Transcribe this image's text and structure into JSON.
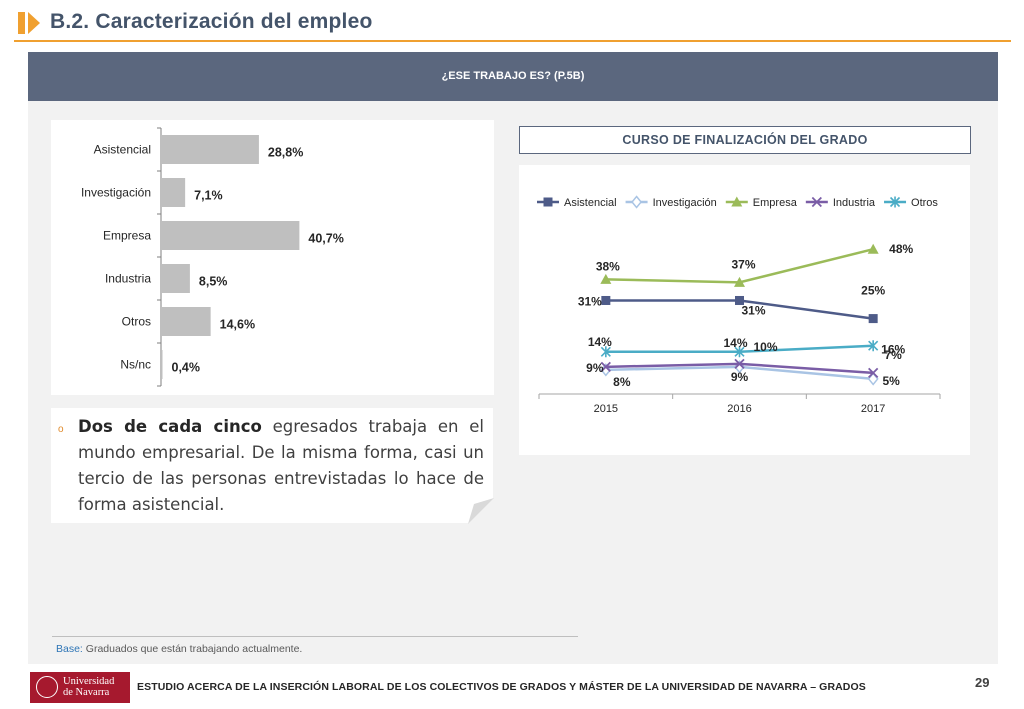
{
  "header": {
    "title": "B.2. Caracterización del empleo"
  },
  "question": {
    "text": "¿ESE TRABAJO ES? (P.5B)"
  },
  "line_chart_title": "CURSO DE FINALIZACIÓN DEL GRADO",
  "callout": {
    "bold": "Dos de cada cinco",
    "text": " egresados trabaja en el mundo empresarial. De la misma forma, casi un tercio de las personas entrevistadas lo hace de forma asistencial."
  },
  "base": {
    "label": "Base:",
    "text": " Graduados que están trabajando actualmente."
  },
  "footer": {
    "logo_line1": "Universidad",
    "logo_line2": "de Navarra",
    "text": "ESTUDIO ACERCA DE LA INSERCIÓN LABORAL DE LOS COLECTIVOS DE GRADOS Y MÁSTER DE LA UNIVERSIDAD DE NAVARRA – GRADOS",
    "page_number": "29"
  },
  "colors": {
    "accent": "#f0a030",
    "bar": "#bfbfbf",
    "header_bar": "#5b677e"
  },
  "chart_data": [
    {
      "type": "bar",
      "orientation": "horizontal",
      "categories": [
        "Asistencial",
        "Investigación",
        "Empresa",
        "Industria",
        "Otros",
        "Ns/nc"
      ],
      "values": [
        28.8,
        7.1,
        40.7,
        8.5,
        14.6,
        0.4
      ],
      "labels": [
        "28,8%",
        "7,1%",
        "40,7%",
        "8,5%",
        "14,6%",
        "0,4%"
      ],
      "xlim": [
        0,
        50
      ],
      "color": "#bfbfbf"
    },
    {
      "type": "line",
      "title": "CURSO DE FINALIZACIÓN DEL GRADO",
      "x": [
        "2015",
        "2016",
        "2017"
      ],
      "ylim": [
        0,
        60
      ],
      "legend_position": "top",
      "series": [
        {
          "name": "Asistencial",
          "values": [
            31,
            31,
            25
          ],
          "labels": [
            "31%",
            "31%",
            "25%"
          ],
          "color": "#4e5b88",
          "marker": "square"
        },
        {
          "name": "Investigación",
          "values": [
            8,
            9,
            5
          ],
          "labels": [
            "8%",
            "9%",
            "5%"
          ],
          "color": "#a9c4e4",
          "marker": "diamond"
        },
        {
          "name": "Empresa",
          "values": [
            38,
            37,
            48
          ],
          "labels": [
            "38%",
            "37%",
            "48%"
          ],
          "color": "#9bbb59",
          "marker": "triangle"
        },
        {
          "name": "Industria",
          "values": [
            9,
            10,
            7
          ],
          "labels": [
            "9%",
            "10%",
            "7%"
          ],
          "color": "#7a5da6",
          "marker": "x"
        },
        {
          "name": "Otros",
          "values": [
            14,
            14,
            16
          ],
          "labels": [
            "14%",
            "14%",
            "16%"
          ],
          "color": "#4aacc6",
          "marker": "star"
        }
      ]
    }
  ]
}
